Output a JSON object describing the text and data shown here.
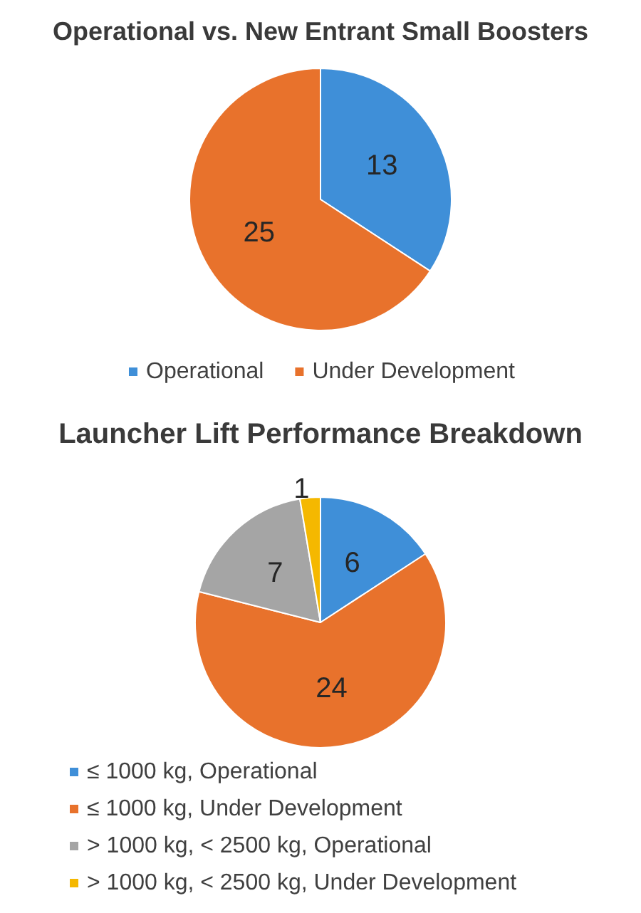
{
  "chart_data": [
    {
      "type": "pie",
      "title": "Operational vs. New Entrant Small Boosters",
      "categories": [
        "Operational",
        "Under Development"
      ],
      "values": [
        13,
        25
      ],
      "colors": [
        "#3f8fd8",
        "#e8722c"
      ],
      "data_labels": true,
      "legend": "bottom"
    },
    {
      "type": "pie",
      "title": "Launcher Lift Performance Breakdown",
      "categories": [
        "≤ 1000 kg, Operational",
        "≤ 1000 kg, Under Development",
        "> 1000 kg, < 2500 kg, Operational",
        "> 1000 kg, < 2500 kg, Under Development"
      ],
      "values": [
        6,
        24,
        7,
        1
      ],
      "colors": [
        "#3f8fd8",
        "#e8722c",
        "#a5a5a5",
        "#f5b800"
      ],
      "data_labels": true,
      "legend": "bottom left"
    }
  ]
}
